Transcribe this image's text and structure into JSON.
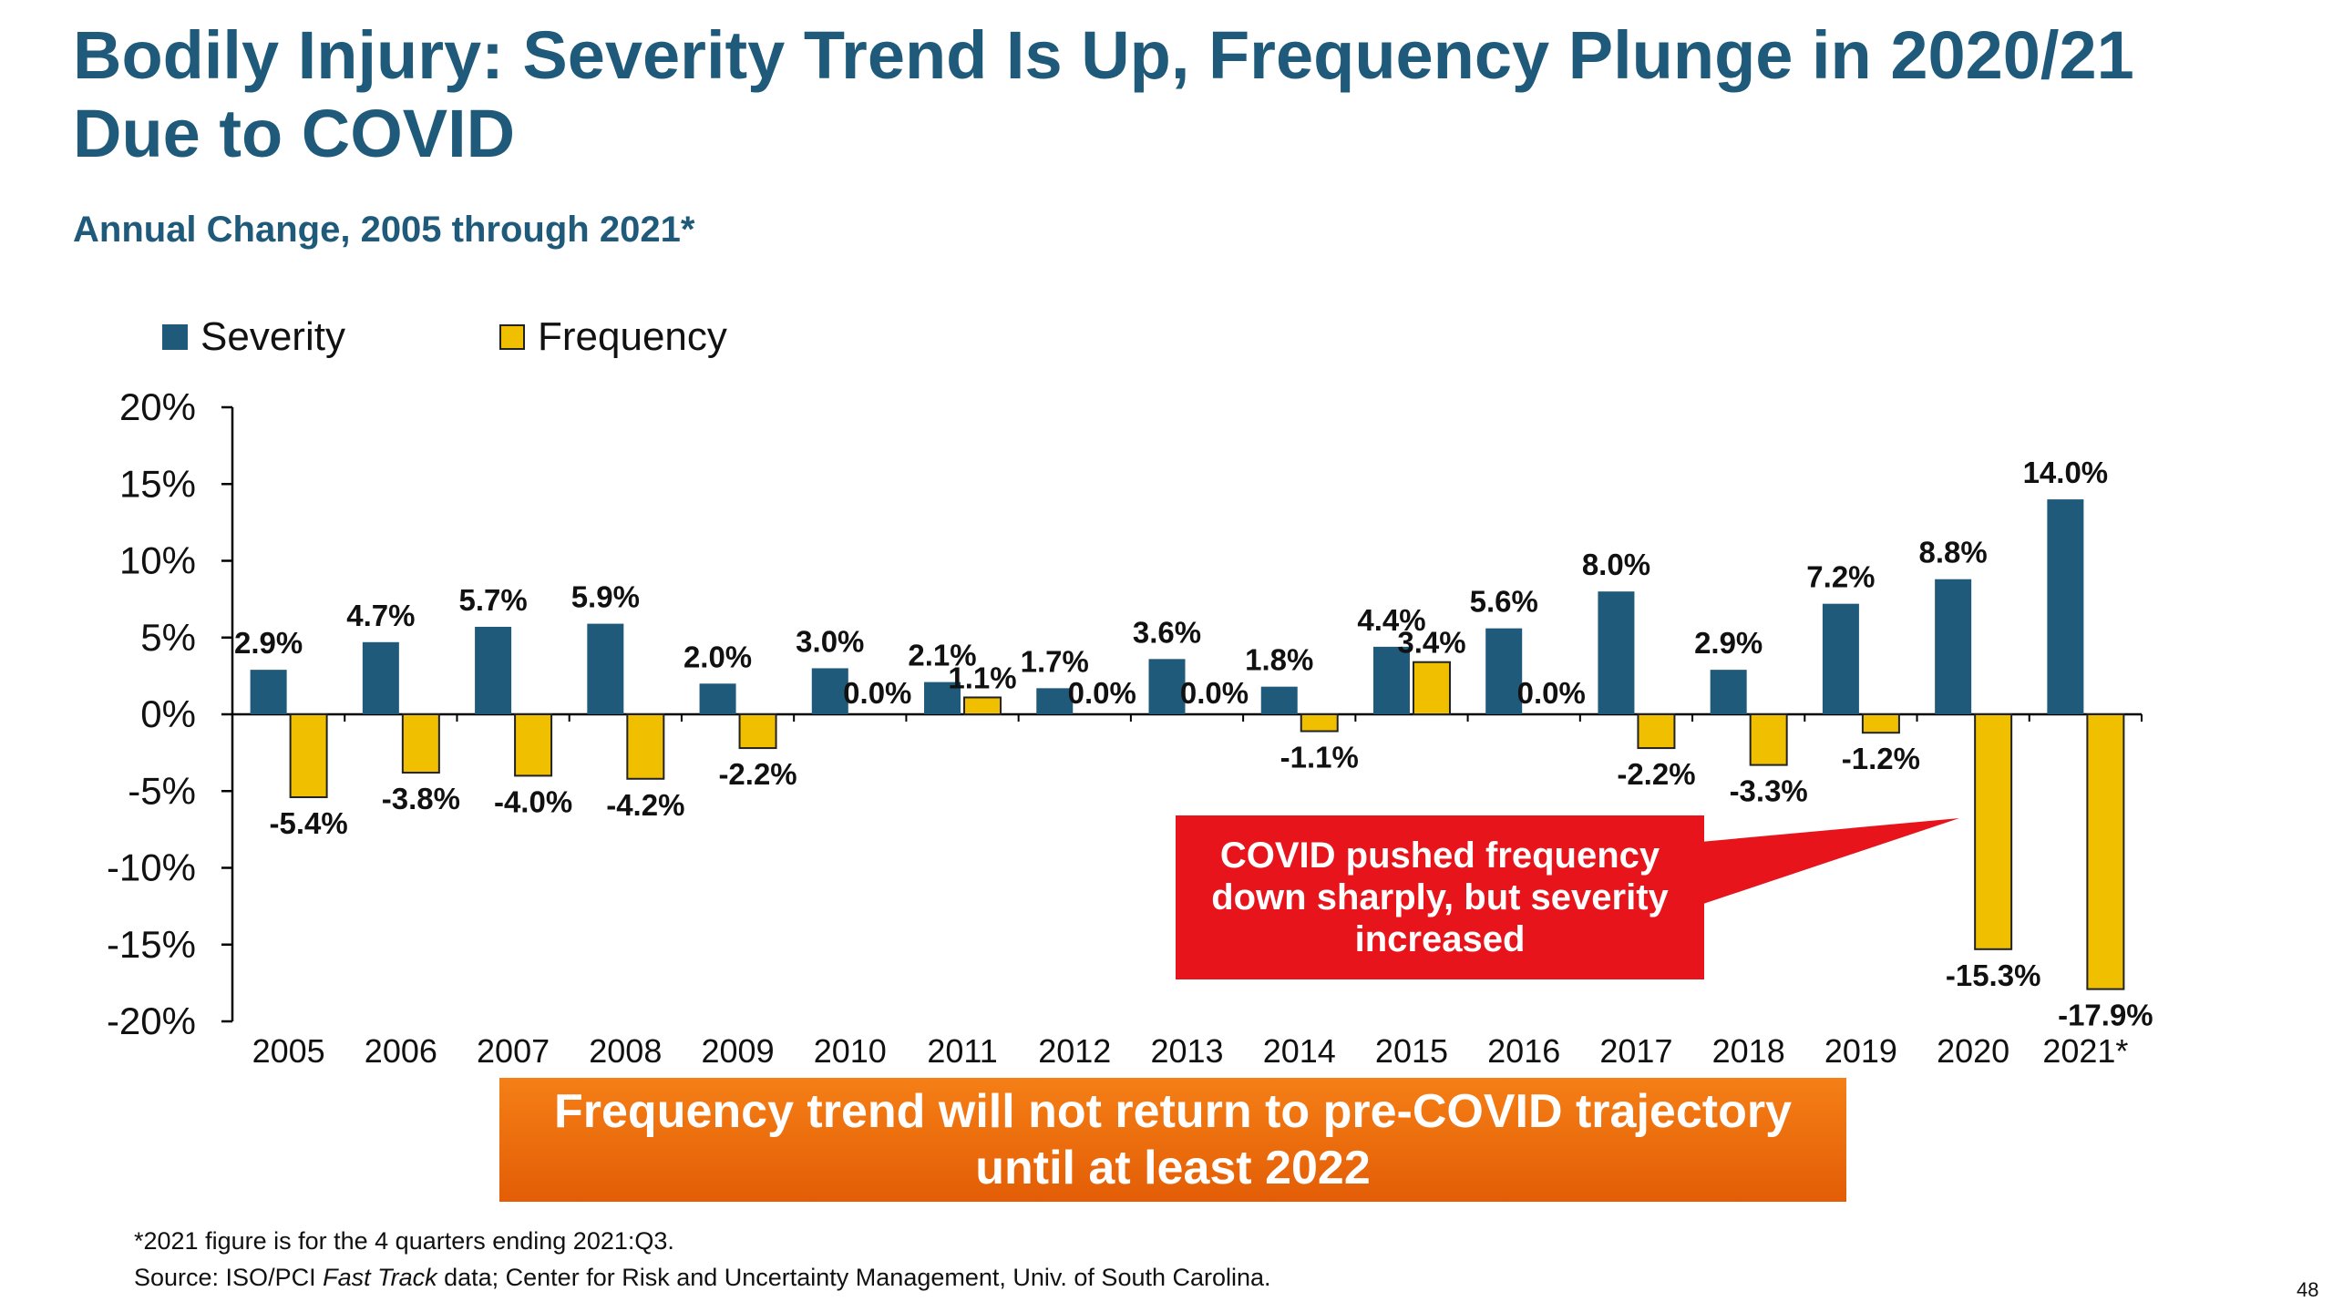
{
  "slide": {
    "title": "Bodily Injury: Severity Trend Is Up, Frequency Plunge in 2020/21 Due to COVID",
    "subtitle": "Annual Change, 2005 through 2021*",
    "callout": "COVID pushed frequency down sharply, but severity increased",
    "banner": "Frequency trend will not return to pre-COVID trajectory until at least 2022",
    "footnote": "*2021 figure is for the 4 quarters ending 2021:Q3.",
    "source_prefix": "Source: ISO/PCI ",
    "source_italic": "Fast Track",
    "source_suffix": " data; Center for Risk and Uncertainty Management, Univ. of South Carolina.",
    "page_number": "48"
  },
  "colors": {
    "title": "#1f5a7a",
    "severity": "#1f5a7a",
    "frequency": "#f0c000",
    "callout": "#e8141c",
    "banner": "#f07010"
  },
  "chart_data": {
    "type": "bar",
    "title": "",
    "xlabel": "",
    "ylabel": "",
    "ylim": [
      -20,
      20
    ],
    "yticks": [
      20,
      15,
      10,
      5,
      0,
      -5,
      -10,
      -15,
      -20
    ],
    "ytick_labels": [
      "20%",
      "15%",
      "10%",
      "5%",
      "0%",
      "-5%",
      "-10%",
      "-15%",
      "-20%"
    ],
    "grid": false,
    "legend_position": "top-left",
    "categories": [
      "2005",
      "2006",
      "2007",
      "2008",
      "2009",
      "2010",
      "2011",
      "2012",
      "2013",
      "2014",
      "2015",
      "2016",
      "2017",
      "2018",
      "2019",
      "2020",
      "2021*"
    ],
    "series": [
      {
        "name": "Severity",
        "values": [
          2.9,
          4.7,
          5.7,
          5.9,
          2.0,
          3.0,
          2.1,
          1.7,
          3.6,
          1.8,
          4.4,
          5.6,
          8.0,
          2.9,
          7.2,
          8.8,
          14.0
        ],
        "labels": [
          "2.9%",
          "4.7%",
          "5.7%",
          "5.9%",
          "2.0%",
          "3.0%",
          "2.1%",
          "1.7%",
          "3.6%",
          "1.8%",
          "4.4%",
          "5.6%",
          "8.0%",
          "2.9%",
          "7.2%",
          "8.8%",
          "14.0%"
        ]
      },
      {
        "name": "Frequency",
        "values": [
          -5.4,
          -3.8,
          -4.0,
          -4.2,
          -2.2,
          0.0,
          1.1,
          0.0,
          0.0,
          -1.1,
          3.4,
          0.0,
          -2.2,
          -3.3,
          -1.2,
          -15.3,
          -17.9
        ],
        "labels": [
          "-5.4%",
          "-3.8%",
          "-4.0%",
          "-4.2%",
          "-2.2%",
          "0.0%",
          "1.1%",
          "0.0%",
          "0.0%",
          "-1.1%",
          "3.4%",
          "0.0%",
          "-2.2%",
          "-3.3%",
          "-1.2%",
          "-15.3%",
          "-17.9%"
        ]
      }
    ]
  }
}
